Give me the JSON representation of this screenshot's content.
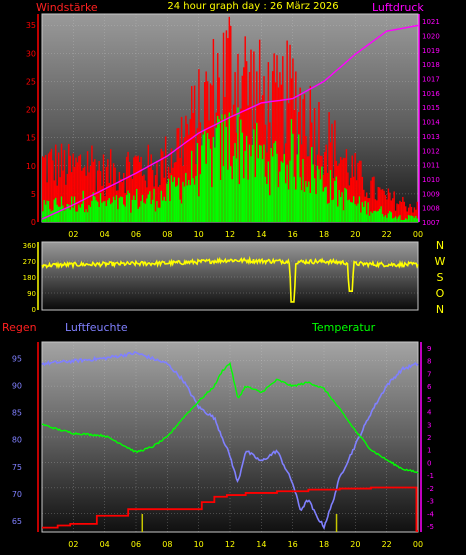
{
  "header": {
    "title": "24 hour graph day : 26 März 2026",
    "left_label": "Windstärke",
    "right_label": "Luftdruck"
  },
  "colors": {
    "wind_gust": "#ff0000",
    "wind_avg": "#00ff00",
    "pressure": "#ff00ff",
    "direction": "#ffff00",
    "humidity": "#8080ff",
    "temperature": "#00ff00",
    "rain": "#ff0000",
    "axis_left": "#ff0000",
    "axis_right_top": "#ff00ff",
    "axis_right_bottom": "#ff00ff",
    "label_luftfeuchte": "#8080ff",
    "label_temperatur": "#00ff00"
  },
  "wind_panel": {
    "left_ticks": [
      "0",
      "5",
      "10",
      "15",
      "20",
      "25",
      "30",
      "35"
    ],
    "right_ticks": [
      "1007",
      "1008",
      "1009",
      "1010",
      "1011",
      "1012",
      "1013",
      "1014",
      "1015",
      "1016",
      "1017",
      "1018",
      "1019",
      "1020",
      "1021"
    ],
    "x_ticks": [
      "02",
      "04",
      "06",
      "08",
      "10",
      "12",
      "14",
      "16",
      "18",
      "20",
      "22",
      "00"
    ]
  },
  "direction_panel": {
    "left_ticks": [
      "360",
      "270",
      "180",
      "90",
      "0"
    ],
    "compass": [
      "N",
      "W",
      "S",
      "O",
      "N"
    ]
  },
  "bottom_panel": {
    "label_rain": "Regen",
    "label_humidity": "Luftfeuchte",
    "label_temperature": "Temperatur",
    "left_ticks": [
      "65",
      "70",
      "75",
      "80",
      "85",
      "90",
      "95"
    ],
    "right_ticks": [
      "9",
      "8",
      "7",
      "6",
      "5",
      "4",
      "3",
      "2",
      "1",
      "0",
      "-1",
      "-2",
      "-3",
      "-4",
      "-5"
    ],
    "x_ticks": [
      "02",
      "04",
      "06",
      "08",
      "10",
      "12",
      "14",
      "16",
      "18",
      "20",
      "22",
      "00"
    ]
  },
  "chart_data": [
    {
      "type": "bar",
      "title": "24 hour graph day : 26 März 2026",
      "ylabel": "Windstärke",
      "y2label": "Luftdruck",
      "x_range_hours": [
        0,
        24
      ],
      "ylim": [
        0,
        37
      ],
      "y2lim": [
        1007,
        1021.5
      ],
      "grid": true,
      "series": [
        {
          "name": "Windstärke",
          "style": "gust-bars",
          "x": [
            0,
            1,
            2,
            3,
            4,
            5,
            6,
            7,
            8,
            9,
            10,
            11,
            12,
            13,
            14,
            15,
            16,
            17,
            18,
            19,
            20,
            21,
            22,
            23,
            24
          ],
          "values": [
            12,
            12,
            11,
            13,
            10,
            11,
            12,
            11,
            13,
            18,
            22,
            28,
            33,
            30,
            26,
            24,
            27,
            22,
            18,
            14,
            10,
            7,
            5,
            4,
            3
          ]
        },
        {
          "name": "",
          "style": "avg-bars",
          "x": [
            0,
            1,
            2,
            3,
            4,
            5,
            6,
            7,
            8,
            9,
            10,
            11,
            12,
            13,
            14,
            15,
            16,
            17,
            18,
            19,
            20,
            21,
            22,
            23,
            24
          ],
          "values": [
            3,
            4,
            4,
            5,
            4,
            4,
            5,
            5,
            6,
            9,
            12,
            15,
            18,
            17,
            14,
            13,
            15,
            12,
            9,
            6,
            4,
            3,
            2,
            1,
            1
          ]
        },
        {
          "name": "Luftdruck",
          "axis": "right",
          "x": [
            0,
            2,
            4,
            6,
            8,
            10,
            12,
            14,
            16,
            18,
            20,
            22,
            24
          ],
          "values": [
            1007.2,
            1008.2,
            1009.3,
            1010.4,
            1011.6,
            1013.2,
            1014.3,
            1015.3,
            1015.6,
            1016.8,
            1018.7,
            1020.3,
            1020.7
          ]
        }
      ]
    },
    {
      "type": "line",
      "title": "",
      "ylabel": "",
      "x_range_hours": [
        0,
        24
      ],
      "ylim": [
        0,
        360
      ],
      "series": [
        {
          "name": "",
          "x": [
            0,
            2,
            4,
            6,
            8,
            10,
            12,
            14,
            15.8,
            15.9,
            16.1,
            16.2,
            18,
            19.5,
            19.6,
            19.8,
            19.9,
            21,
            22,
            24
          ],
          "values": [
            245,
            250,
            252,
            255,
            258,
            265,
            275,
            270,
            268,
            40,
            40,
            265,
            268,
            260,
            100,
            100,
            255,
            252,
            250,
            250
          ]
        }
      ]
    },
    {
      "type": "line",
      "title": "",
      "x_range_hours": [
        0,
        24
      ],
      "ylim": [
        63,
        98
      ],
      "y2lim": [
        -5,
        9
      ],
      "grid": true,
      "series": [
        {
          "name": "Luftfeuchte",
          "axis": "left",
          "x": [
            0,
            2,
            4,
            6,
            7,
            8,
            9,
            10,
            11,
            12,
            12.5,
            13,
            14,
            15,
            16,
            16.5,
            17,
            17.5,
            18,
            18.5,
            19,
            20,
            21,
            22,
            23,
            24
          ],
          "values": [
            94,
            94.5,
            95,
            96,
            95,
            94,
            91,
            86,
            84,
            77,
            72,
            78,
            76,
            78,
            72,
            67,
            69,
            66,
            64,
            68,
            73,
            79,
            85,
            90,
            93,
            94
          ]
        },
        {
          "name": "Temperatur",
          "axis": "right",
          "x": [
            0,
            1,
            2,
            3,
            4,
            5,
            6,
            7,
            8,
            9,
            10,
            11,
            11.5,
            12,
            12.5,
            13,
            14,
            15,
            16,
            17,
            18,
            19,
            20,
            21,
            22,
            23,
            24
          ],
          "values": [
            3,
            2.6,
            2.3,
            2.2,
            2.1,
            1.5,
            0.8,
            1.2,
            2.0,
            3.5,
            4.8,
            6.0,
            7.2,
            7.8,
            5.0,
            6.0,
            5.5,
            6.5,
            6.0,
            6.3,
            5.8,
            4.2,
            2.5,
            1.0,
            0.2,
            -0.5,
            -0.8
          ]
        },
        {
          "name": "Regen",
          "axis": "left",
          "style": "step",
          "x": [
            0,
            1,
            1.8,
            3.5,
            5.5,
            8,
            10.2,
            11,
            11.8,
            13,
            15,
            17,
            19,
            21,
            23.8,
            23.9
          ],
          "values": [
            63.8,
            64.2,
            64.5,
            66,
            67.2,
            67.2,
            68.5,
            69.5,
            69.8,
            70.2,
            70.5,
            70.8,
            71,
            71.2,
            71.2,
            63.2
          ]
        }
      ],
      "markers": {
        "name": "",
        "x": [
          6.4,
          18.8
        ]
      }
    }
  ]
}
